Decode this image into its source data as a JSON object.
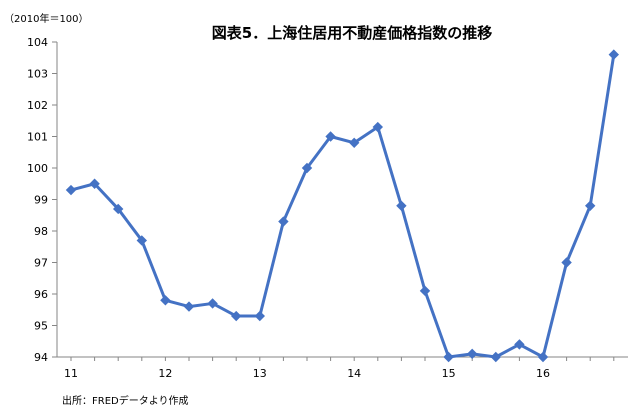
{
  "chart_data": {
    "type": "line",
    "title": "図表5．上海住居用不動産価格指数の推移",
    "unit_label": "（2010年＝100）",
    "source": "出所：FREDデータより作成",
    "ylim": [
      94,
      104
    ],
    "y_ticks": [
      "104",
      "103",
      "102",
      "101",
      "100",
      "99",
      "98",
      "97",
      "96",
      "95",
      "94"
    ],
    "x_ticks": [
      "11",
      "12",
      "13",
      "14",
      "15",
      "16"
    ],
    "x": [
      2011.0,
      2011.25,
      2011.5,
      2011.75,
      2012.0,
      2012.25,
      2012.5,
      2012.75,
      2013.0,
      2013.25,
      2013.5,
      2013.75,
      2014.0,
      2014.25,
      2014.5,
      2014.75,
      2015.0,
      2015.25,
      2015.5,
      2015.75,
      2016.0,
      2016.25,
      2016.5,
      2016.75
    ],
    "series": [
      {
        "color": "#4472C4",
        "values": [
          99.3,
          99.5,
          98.7,
          97.7,
          95.8,
          95.6,
          95.7,
          95.3,
          95.3,
          98.3,
          100.0,
          101.0,
          100.8,
          101.3,
          98.8,
          96.1,
          94.0,
          94.1,
          94.0,
          94.4,
          94.0,
          97.0,
          98.8,
          103.6
        ]
      }
    ],
    "grid": false,
    "legend": "none"
  }
}
